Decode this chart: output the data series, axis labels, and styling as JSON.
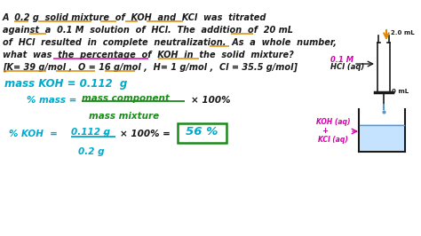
{
  "bg_color": "#ffffff",
  "black": "#1a1a1a",
  "orange": "#e08800",
  "green": "#1a8a1a",
  "cyan": "#00aacc",
  "pink": "#dd00aa",
  "burette_color": "#333333",
  "liquid_color": "#aaccee",
  "figsize": [
    4.74,
    2.66
  ],
  "dpi": 100,
  "line1": "A  0.2 g  solid mixture  of  KOH  and  KCl  was  titrated",
  "line2": "against  a  0.1 M  solution  of  HCl.  The  addition  of  20 mL",
  "line3": "of  HCl  resulted  in  complete  neutralization.  As  a  whole  number,",
  "line4": "what  was  the  percentage  of  KOH  in  the  solid  mixture?",
  "line5": "[K= 39 g/mol ,  O = 16 g/mol ,  H= 1 g/mol ,  Cl = 35.5 g/mol]"
}
